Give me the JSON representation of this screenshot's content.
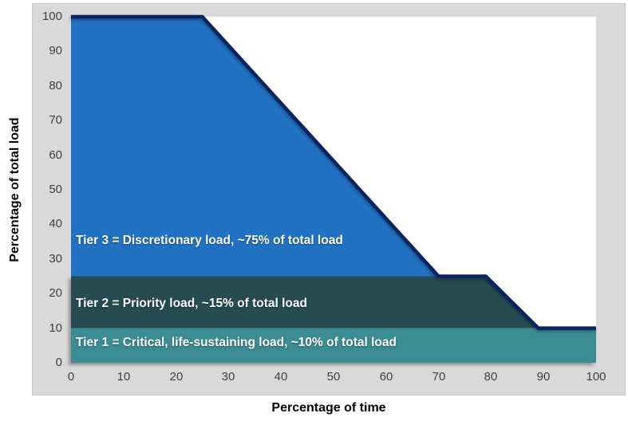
{
  "chart_data": {
    "type": "area",
    "title": "",
    "xlabel": "Percentage of time",
    "ylabel": "Percentage of total load",
    "xlim": [
      0,
      100
    ],
    "ylim": [
      0,
      100
    ],
    "x_ticks": [
      0,
      10,
      20,
      30,
      40,
      50,
      60,
      70,
      80,
      90,
      100
    ],
    "y_ticks": [
      0,
      10,
      20,
      30,
      40,
      50,
      60,
      70,
      80,
      90,
      100
    ],
    "grid": false,
    "legend_position": "none",
    "line": {
      "name": "total-load-duration-curve",
      "color": "#0A2363",
      "width": 4.5,
      "points": [
        [
          0,
          100
        ],
        [
          25,
          100
        ],
        [
          70,
          25
        ],
        [
          79,
          25
        ],
        [
          89,
          10
        ],
        [
          100,
          10
        ]
      ]
    },
    "bands": [
      {
        "name": "tier-3",
        "label": "Tier 3 = Discretionary load, ~75% of total load",
        "y_from": 25,
        "y_to": 100,
        "color": "#2272C3"
      },
      {
        "name": "tier-2",
        "label": "Tier 2 = Priority load, ~15% of total load",
        "y_from": 10,
        "y_to": 25,
        "color": "#264B52"
      },
      {
        "name": "tier-1",
        "label": "Tier 1 = Critical, life-sustaining load, ~10% of total load",
        "y_from": 0,
        "y_to": 10,
        "color": "#3B8C93"
      }
    ]
  },
  "colors": {
    "chart_background": "#D9D9D9",
    "chart_border": "#C8C8C8",
    "plot_background": "#FFFFFF",
    "tick_label": "#3F3F3F",
    "axis_title": "#000000",
    "band_label_text": "#FFFFFF"
  }
}
